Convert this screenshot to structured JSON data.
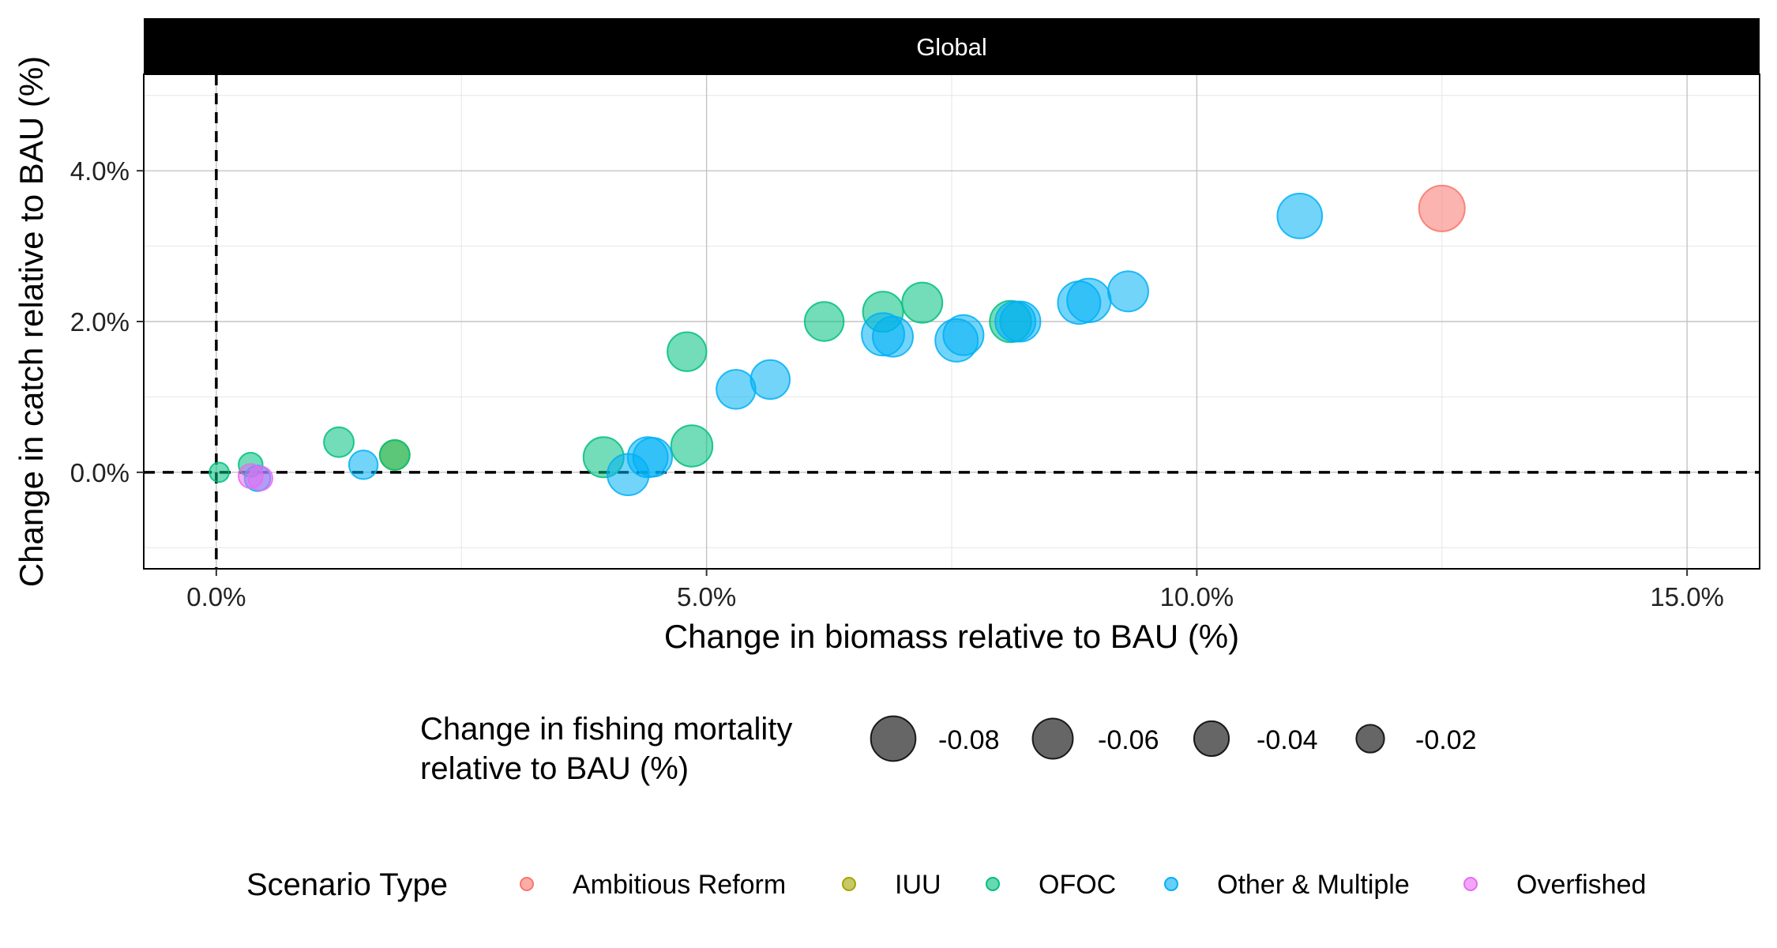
{
  "chart_data": {
    "type": "scatter",
    "title": "",
    "panel_label": "Global",
    "xlabel": "Change in biomass relative to BAU (%)",
    "ylabel": "Change in catch relative to BAU (%)",
    "xlim": [
      -0.0074,
      0.1574
    ],
    "ylim": [
      -0.0128,
      0.0528
    ],
    "x_ticks": [
      {
        "value": 0.0,
        "label": "0.0%"
      },
      {
        "value": 0.05,
        "label": "5.0%"
      },
      {
        "value": 0.1,
        "label": "10.0%"
      },
      {
        "value": 0.15,
        "label": "15.0%"
      }
    ],
    "y_ticks": [
      {
        "value": 0.0,
        "label": "0.0%"
      },
      {
        "value": 0.02,
        "label": "2.0%"
      },
      {
        "value": 0.04,
        "label": "4.0%"
      }
    ],
    "reference_lines": {
      "x": 0.0,
      "y": 0.0
    },
    "grid": true,
    "legend_placement": "bottom",
    "size_legend": {
      "title_lines": [
        "Change in fishing mortality",
        "relative to BAU (%)"
      ],
      "items": [
        {
          "value": -0.08,
          "label": "-0.08"
        },
        {
          "value": -0.06,
          "label": "-0.06"
        },
        {
          "value": -0.04,
          "label": "-0.04"
        },
        {
          "value": -0.02,
          "label": "-0.02"
        }
      ]
    },
    "color_legend": {
      "title": "Scenario Type",
      "items": [
        {
          "name": "Ambitious Reform",
          "color": "#F8766D"
        },
        {
          "name": "IUU",
          "color": "#A3A500"
        },
        {
          "name": "OFOC",
          "color": "#00BF7D"
        },
        {
          "name": "Other & Multiple",
          "color": "#00B0F6"
        },
        {
          "name": "Overfished",
          "color": "#E76BF3"
        }
      ]
    },
    "series": [
      {
        "name": "Ambitious Reform",
        "points": [
          {
            "x": 0.125,
            "y": 0.035,
            "size": -0.085
          }
        ]
      },
      {
        "name": "IUU",
        "points": [
          {
            "x": 0.0182,
            "y": 0.0023,
            "size": -0.025
          }
        ]
      },
      {
        "name": "OFOC",
        "points": [
          {
            "x": 0.0003,
            "y": 0.0,
            "size": -0.005
          },
          {
            "x": 0.0035,
            "y": 0.001,
            "size": -0.012
          },
          {
            "x": 0.0125,
            "y": 0.004,
            "size": -0.025
          },
          {
            "x": 0.0182,
            "y": 0.0023,
            "size": -0.025
          },
          {
            "x": 0.0395,
            "y": 0.002,
            "size": -0.06
          },
          {
            "x": 0.048,
            "y": 0.016,
            "size": -0.055
          },
          {
            "x": 0.0485,
            "y": 0.0035,
            "size": -0.065
          },
          {
            "x": 0.062,
            "y": 0.02,
            "size": -0.055
          },
          {
            "x": 0.068,
            "y": 0.0213,
            "size": -0.06
          },
          {
            "x": 0.072,
            "y": 0.0225,
            "size": -0.06
          },
          {
            "x": 0.081,
            "y": 0.02,
            "size": -0.065
          }
        ]
      },
      {
        "name": "Other & Multiple",
        "points": [
          {
            "x": 0.015,
            "y": 0.001,
            "size": -0.022
          },
          {
            "x": 0.0042,
            "y": -0.0008,
            "size": -0.015
          },
          {
            "x": 0.042,
            "y": -0.0003,
            "size": -0.065
          },
          {
            "x": 0.044,
            "y": 0.002,
            "size": -0.06
          },
          {
            "x": 0.0445,
            "y": 0.002,
            "size": -0.055
          },
          {
            "x": 0.053,
            "y": 0.011,
            "size": -0.055
          },
          {
            "x": 0.0565,
            "y": 0.0123,
            "size": -0.055
          },
          {
            "x": 0.068,
            "y": 0.0183,
            "size": -0.07
          },
          {
            "x": 0.069,
            "y": 0.018,
            "size": -0.06
          },
          {
            "x": 0.0755,
            "y": 0.0175,
            "size": -0.07
          },
          {
            "x": 0.0762,
            "y": 0.0182,
            "size": -0.06
          },
          {
            "x": 0.0815,
            "y": 0.02,
            "size": -0.06
          },
          {
            "x": 0.082,
            "y": 0.02,
            "size": -0.06
          },
          {
            "x": 0.088,
            "y": 0.0225,
            "size": -0.07
          },
          {
            "x": 0.089,
            "y": 0.0228,
            "size": -0.075
          },
          {
            "x": 0.093,
            "y": 0.024,
            "size": -0.06
          },
          {
            "x": 0.1105,
            "y": 0.034,
            "size": -0.08
          }
        ]
      },
      {
        "name": "Overfished",
        "points": [
          {
            "x": 0.0035,
            "y": -0.0005,
            "size": -0.012
          },
          {
            "x": 0.0045,
            "y": -0.0008,
            "size": -0.012
          }
        ]
      }
    ]
  }
}
